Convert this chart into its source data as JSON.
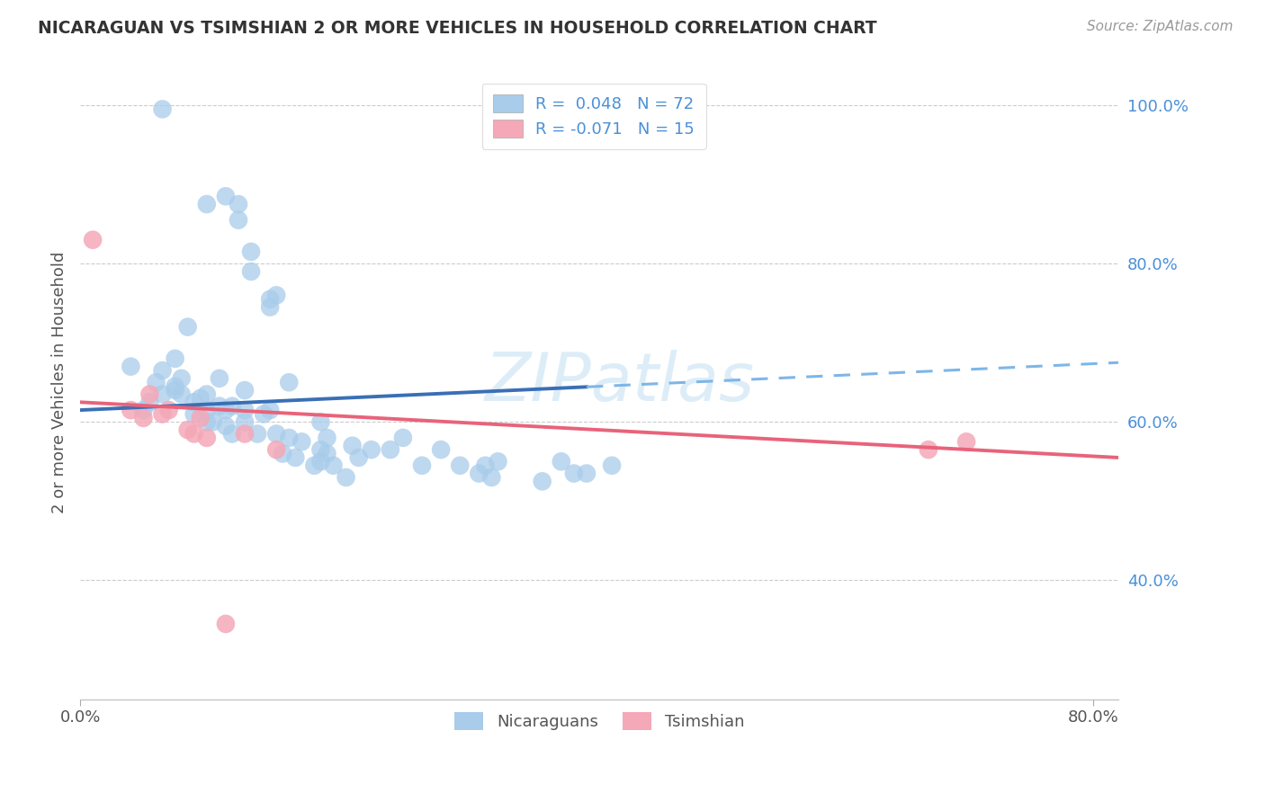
{
  "title": "NICARAGUAN VS TSIMSHIAN 2 OR MORE VEHICLES IN HOUSEHOLD CORRELATION CHART",
  "source": "Source: ZipAtlas.com",
  "ylabel": "2 or more Vehicles in Household",
  "xlim": [
    0.0,
    0.82
  ],
  "ylim": [
    0.25,
    1.05
  ],
  "blue_color": "#A8CCEA",
  "pink_color": "#F4A8B8",
  "line_blue_solid": "#3A6FB5",
  "line_blue_dash": "#7EB6E8",
  "line_pink": "#E8637A",
  "watermark": "ZIPatlas",
  "nicaraguan_x": [
    0.065,
    0.1,
    0.115,
    0.125,
    0.125,
    0.135,
    0.135,
    0.15,
    0.15,
    0.155,
    0.04,
    0.05,
    0.055,
    0.06,
    0.065,
    0.065,
    0.075,
    0.075,
    0.075,
    0.08,
    0.08,
    0.085,
    0.09,
    0.09,
    0.095,
    0.1,
    0.1,
    0.1,
    0.105,
    0.11,
    0.11,
    0.115,
    0.115,
    0.12,
    0.12,
    0.13,
    0.13,
    0.13,
    0.14,
    0.145,
    0.15,
    0.155,
    0.16,
    0.165,
    0.165,
    0.17,
    0.175,
    0.185,
    0.19,
    0.19,
    0.19,
    0.195,
    0.195,
    0.2,
    0.21,
    0.215,
    0.22,
    0.23,
    0.245,
    0.255,
    0.27,
    0.285,
    0.3,
    0.315,
    0.32,
    0.325,
    0.33,
    0.365,
    0.38,
    0.39,
    0.4,
    0.42
  ],
  "nicaraguan_y": [
    0.995,
    0.875,
    0.885,
    0.855,
    0.875,
    0.79,
    0.815,
    0.745,
    0.755,
    0.76,
    0.67,
    0.615,
    0.625,
    0.65,
    0.635,
    0.665,
    0.64,
    0.645,
    0.68,
    0.635,
    0.655,
    0.72,
    0.61,
    0.625,
    0.63,
    0.6,
    0.615,
    0.635,
    0.6,
    0.62,
    0.655,
    0.595,
    0.615,
    0.585,
    0.62,
    0.6,
    0.615,
    0.64,
    0.585,
    0.61,
    0.615,
    0.585,
    0.56,
    0.58,
    0.65,
    0.555,
    0.575,
    0.545,
    0.565,
    0.6,
    0.55,
    0.56,
    0.58,
    0.545,
    0.53,
    0.57,
    0.555,
    0.565,
    0.565,
    0.58,
    0.545,
    0.565,
    0.545,
    0.535,
    0.545,
    0.53,
    0.55,
    0.525,
    0.55,
    0.535,
    0.535,
    0.545
  ],
  "tsimshian_x": [
    0.01,
    0.04,
    0.05,
    0.055,
    0.065,
    0.07,
    0.085,
    0.09,
    0.095,
    0.1,
    0.115,
    0.13,
    0.155,
    0.67,
    0.7
  ],
  "tsimshian_y": [
    0.83,
    0.615,
    0.605,
    0.635,
    0.61,
    0.615,
    0.59,
    0.585,
    0.605,
    0.58,
    0.345,
    0.585,
    0.565,
    0.565,
    0.575
  ],
  "nic_line_x0": 0.0,
  "nic_line_x_mid": 0.4,
  "nic_line_x1": 0.82,
  "nic_line_y0": 0.615,
  "nic_line_y_mid": 0.645,
  "nic_line_y1": 0.675,
  "tsi_line_x0": 0.0,
  "tsi_line_x1": 0.82,
  "tsi_line_y0": 0.625,
  "tsi_line_y1": 0.555
}
